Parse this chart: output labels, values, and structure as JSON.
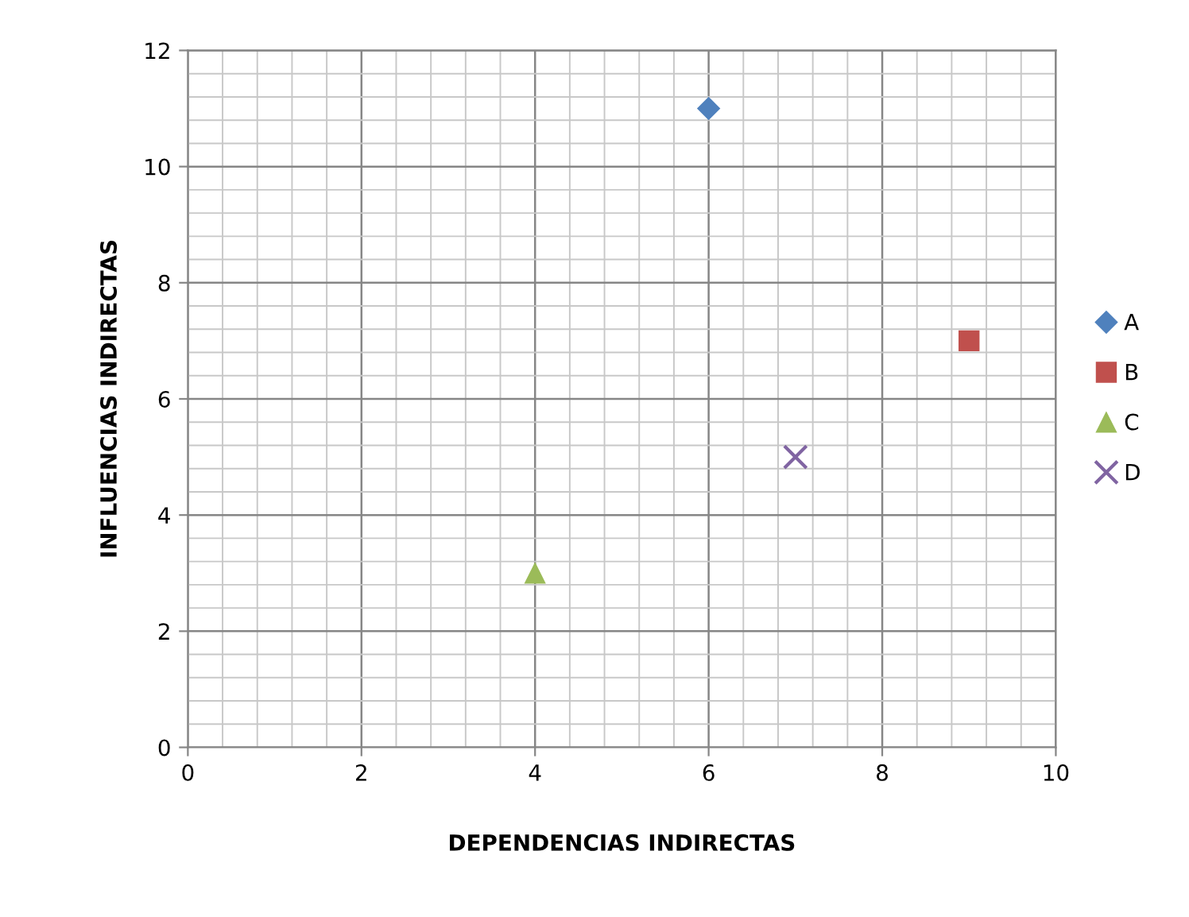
{
  "chart_data": {
    "type": "scatter",
    "xlabel": "DEPENDENCIAS INDIRECTAS",
    "ylabel": "INFLUENCIAS INDIRECTAS",
    "xlim": [
      0,
      10
    ],
    "xticks": [
      0,
      2,
      4,
      6,
      8,
      10
    ],
    "ylim": [
      0,
      12
    ],
    "yticks": [
      0,
      2,
      4,
      6,
      8,
      10,
      12
    ],
    "grid": true,
    "legend": "right",
    "series": [
      {
        "name": "A",
        "color": "#4f81bd",
        "marker": "diamond",
        "x": [
          6
        ],
        "values": [
          11
        ]
      },
      {
        "name": "B",
        "color": "#c0504d",
        "marker": "square",
        "x": [
          9
        ],
        "values": [
          7
        ]
      },
      {
        "name": "C",
        "color": "#9bbb59",
        "marker": "triangle",
        "x": [
          4
        ],
        "values": [
          3
        ]
      },
      {
        "name": "D",
        "color": "#8064a2",
        "marker": "cross",
        "x": [
          7
        ],
        "values": [
          5
        ]
      }
    ]
  }
}
